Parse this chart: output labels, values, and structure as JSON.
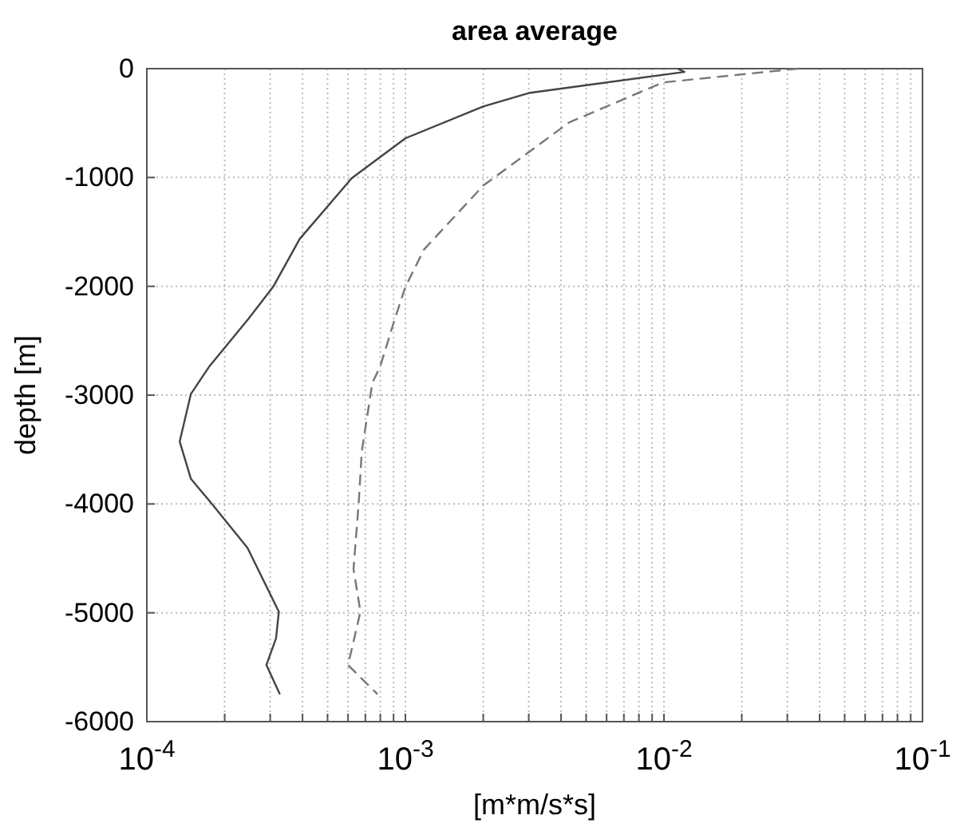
{
  "chart_data": {
    "type": "line",
    "title": "area average",
    "xlabel": "[m*m/s*s]",
    "ylabel": "depth [m]",
    "log": "x",
    "grid": true,
    "xlim": [
      0.0001,
      0.1
    ],
    "ylim": [
      -6000,
      0
    ],
    "xticks": [
      {
        "value": 0.0001,
        "label": "10$^{-4}$"
      },
      {
        "value": 0.0002,
        "label": null
      },
      {
        "value": 0.0003,
        "label": null
      },
      {
        "value": 0.0004,
        "label": null
      },
      {
        "value": 0.0005,
        "label": null
      },
      {
        "value": 0.0006,
        "label": null
      },
      {
        "value": 0.0007,
        "label": null
      },
      {
        "value": 0.0008,
        "label": null
      },
      {
        "value": 0.0009,
        "label": null
      },
      {
        "value": 0.001,
        "label": "10$^{-3}$"
      },
      {
        "value": 0.002,
        "label": null
      },
      {
        "value": 0.003,
        "label": null
      },
      {
        "value": 0.004,
        "label": null
      },
      {
        "value": 0.005,
        "label": null
      },
      {
        "value": 0.006,
        "label": null
      },
      {
        "value": 0.007,
        "label": null
      },
      {
        "value": 0.008,
        "label": null
      },
      {
        "value": 0.009,
        "label": null
      },
      {
        "value": 0.01,
        "label": "10$^{-2}$"
      },
      {
        "value": 0.02,
        "label": null
      },
      {
        "value": 0.03,
        "label": null
      },
      {
        "value": 0.04,
        "label": null
      },
      {
        "value": 0.05,
        "label": null
      },
      {
        "value": 0.06,
        "label": null
      },
      {
        "value": 0.07,
        "label": null
      },
      {
        "value": 0.08,
        "label": null
      },
      {
        "value": 0.09,
        "label": null
      },
      {
        "value": 0.1,
        "label": "10$^{-1}$"
      }
    ],
    "yticks": [
      -6000,
      -5000,
      -4000,
      -3000,
      -2000,
      -1000,
      0
    ],
    "series": [
      {
        "color": "#444444",
        "line_style": "solid",
        "x": [
          0.0113,
          0.012,
          0.003,
          0.002,
          0.001,
          0.00062,
          0.00039,
          0.000308,
          0.000247,
          0.000174,
          0.000148,
          0.000134,
          0.000148,
          0.000177,
          0.000245,
          0.000324,
          0.000316,
          0.00029,
          0.000327
        ],
        "values": [
          0,
          -30,
          -224,
          -347,
          -640,
          -1007,
          -1565,
          -2005,
          -2300,
          -2740,
          -2990,
          -3426,
          -3768,
          -3988,
          -4403,
          -4990,
          -5235,
          -5480,
          -5748
        ]
      },
      {
        "color": "#777777",
        "line_style": "dashed",
        "x": [
          0.033,
          0.0099,
          0.0043,
          0.002,
          0.00118,
          0.001,
          0.00091,
          0.000798,
          0.000745,
          0.000678,
          0.00066,
          0.00063,
          0.00067,
          0.0006,
          0.00078
        ],
        "values": [
          0,
          -127,
          -494,
          -1075,
          -1662,
          -2005,
          -2300,
          -2740,
          -2887,
          -3520,
          -3988,
          -4598,
          -4990,
          -5480,
          -5748
        ]
      }
    ]
  }
}
